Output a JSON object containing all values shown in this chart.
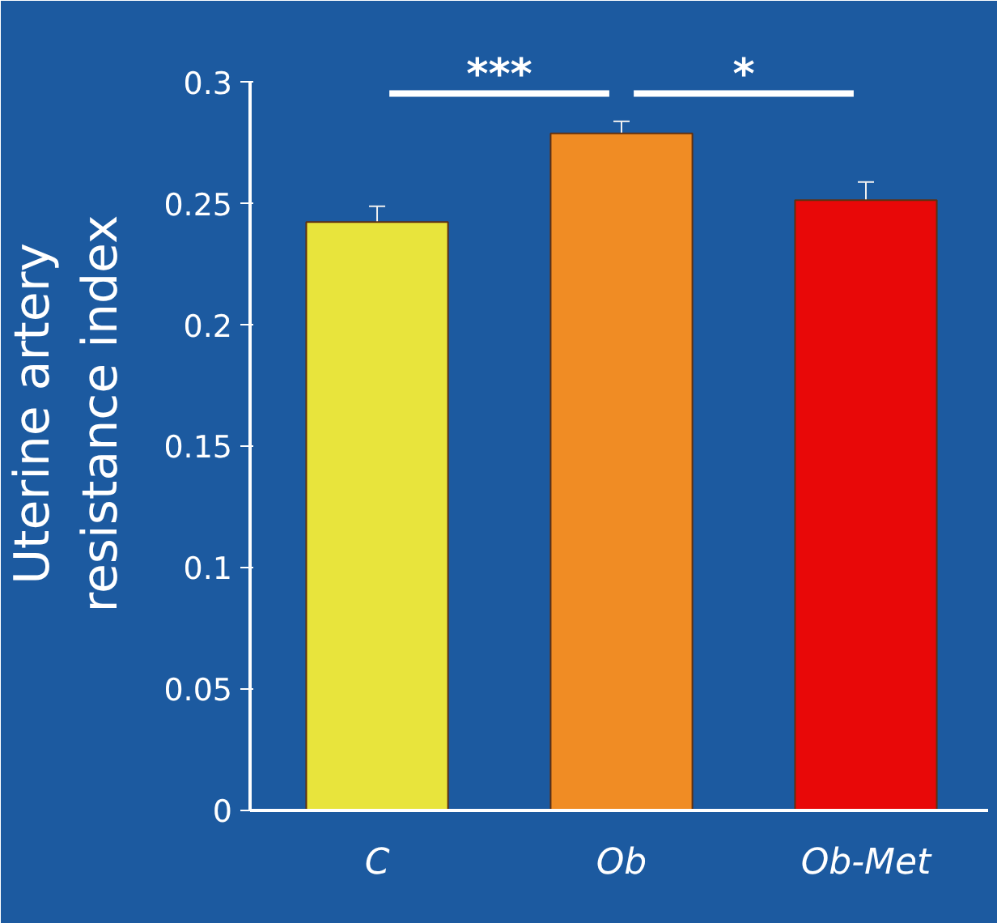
{
  "chart_data": {
    "type": "bar",
    "ylabel": "Uterine artery resistance index",
    "categories": [
      "C",
      "Ob",
      "Ob-Met"
    ],
    "values": [
      0.2425,
      0.279,
      0.2515
    ],
    "errors": [
      0.0065,
      0.005,
      0.0075
    ],
    "colors": [
      "#e8e43c",
      "#f08c24",
      "#e80808"
    ],
    "ylim": [
      0,
      0.3
    ],
    "yticks": [
      0,
      0.05,
      0.1,
      0.15,
      0.2,
      0.25,
      0.3
    ],
    "grid": false,
    "annotations": [
      "***",
      "*"
    ]
  }
}
